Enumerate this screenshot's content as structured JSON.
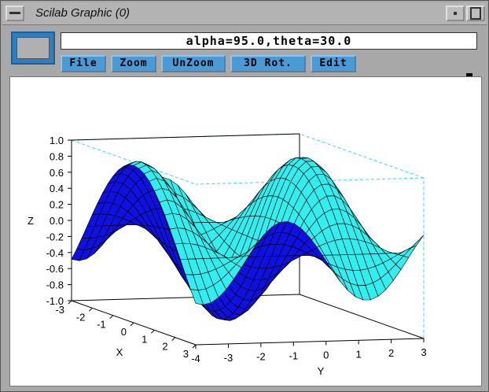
{
  "window": {
    "title": "Scilab Graphic (0)"
  },
  "status": {
    "text": "alpha=95.0,theta=30.0"
  },
  "menu": [
    {
      "label": "File"
    },
    {
      "label": "Zoom"
    },
    {
      "label": "UnZoom"
    },
    {
      "label": "3D Rot."
    },
    {
      "label": "Edit"
    }
  ],
  "plot": {
    "type": "3d-surface",
    "z_axis_label": "Z",
    "x_axis_label": "X",
    "y_axis_label": "Y",
    "z_ticks": [
      "1.0",
      "0.8",
      "0.6",
      "0.4",
      "0.2",
      "0.0",
      "-0.2",
      "-0.4",
      "-0.6",
      "-0.8",
      "-1.0"
    ],
    "x_ticks": [
      "3",
      "2",
      "1",
      "0",
      "-1",
      "-2",
      "-3"
    ],
    "y_ticks": [
      "-4",
      "-3",
      "-2",
      "-1",
      "0",
      "1",
      "2",
      "3"
    ],
    "colors": {
      "front_face": "#33eeee",
      "back_face": "#1010e0",
      "mesh": "#000000",
      "box": "#33dddd"
    }
  },
  "icons": {
    "minimize": "minimize-icon",
    "restore": "restore-icon",
    "maximize": "maximize-icon",
    "graphic": "graphic-icon"
  }
}
